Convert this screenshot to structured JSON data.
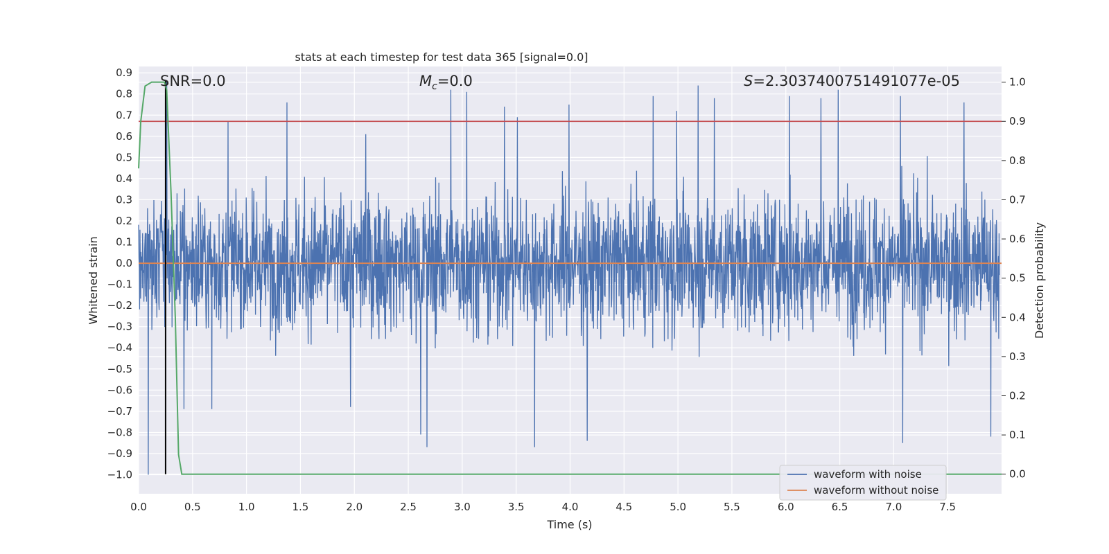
{
  "chart_data": {
    "type": "line",
    "title": "stats at each timestep for test data 365 [signal=0.0]",
    "xlabel": "Time (s)",
    "ylabel": "Whitened strain",
    "y2label": "Detection probability",
    "xlim": [
      0.0,
      8.0
    ],
    "ylim": [
      -1.09,
      0.93
    ],
    "y2lim": [
      -0.05,
      1.04
    ],
    "xticks": [
      "0.0",
      "0.5",
      "1.0",
      "1.5",
      "2.0",
      "2.5",
      "3.0",
      "3.5",
      "4.0",
      "4.5",
      "5.0",
      "5.5",
      "6.0",
      "6.5",
      "7.0",
      "7.5"
    ],
    "yticks": [
      "0.9",
      "0.8",
      "0.7",
      "0.6",
      "0.5",
      "0.4",
      "0.3",
      "0.2",
      "0.1",
      "0.0",
      "-0.1",
      "-0.2",
      "-0.3",
      "-0.4",
      "-0.5",
      "-0.6",
      "-0.7",
      "-0.8",
      "-0.9",
      "-1.0"
    ],
    "y2ticks": [
      "1.0",
      "0.9",
      "0.8",
      "0.7",
      "0.6",
      "0.5",
      "0.4",
      "0.3",
      "0.2",
      "0.1",
      "0.0"
    ],
    "grid": true,
    "legend_position": "lower-right",
    "annotations": {
      "snr": "SNR=0.0",
      "mc_symbol": "M",
      "mc_sub": "c",
      "mc_value": "=0.0",
      "s_symbol": "S",
      "s_value": "=2.3037400751491077e-05"
    },
    "series": [
      {
        "name": "waveform with noise",
        "color": "#4c72b0",
        "description_kind": "noise",
        "amplitude_envelope": [
          -0.5,
          0.5
        ],
        "spikes": [
          {
            "x": 0.09,
            "y": -1.0
          },
          {
            "x": 0.26,
            "y": 0.86
          },
          {
            "x": 0.42,
            "y": -0.69
          },
          {
            "x": 0.68,
            "y": -0.69
          },
          {
            "x": 0.83,
            "y": 0.67
          },
          {
            "x": 1.38,
            "y": 0.76
          },
          {
            "x": 1.97,
            "y": -0.68
          },
          {
            "x": 2.11,
            "y": 0.61
          },
          {
            "x": 2.62,
            "y": -0.81
          },
          {
            "x": 2.68,
            "y": -0.87
          },
          {
            "x": 2.9,
            "y": 0.82
          },
          {
            "x": 3.05,
            "y": 0.81
          },
          {
            "x": 3.4,
            "y": 0.74
          },
          {
            "x": 3.52,
            "y": 0.69
          },
          {
            "x": 3.68,
            "y": -0.87
          },
          {
            "x": 4.0,
            "y": 0.75
          },
          {
            "x": 4.17,
            "y": -0.84
          },
          {
            "x": 4.78,
            "y": 0.79
          },
          {
            "x": 5.0,
            "y": 0.72
          },
          {
            "x": 5.2,
            "y": 0.84
          },
          {
            "x": 5.35,
            "y": 0.78
          },
          {
            "x": 6.05,
            "y": 0.79
          },
          {
            "x": 6.34,
            "y": 0.78
          },
          {
            "x": 6.5,
            "y": 0.82
          },
          {
            "x": 7.08,
            "y": 0.79
          },
          {
            "x": 7.1,
            "y": -0.85
          },
          {
            "x": 7.67,
            "y": 0.76
          },
          {
            "x": 7.92,
            "y": -0.82
          }
        ]
      },
      {
        "name": "waveform without noise",
        "color": "#dd8452",
        "x": [
          0.0,
          8.0
        ],
        "y": [
          0.0,
          0.0
        ]
      },
      {
        "name": "",
        "axis": "right",
        "color": "#55a868",
        "x": [
          0.0,
          0.02,
          0.06,
          0.12,
          0.18,
          0.24,
          0.26,
          0.3,
          0.34,
          0.37,
          0.4,
          8.0
        ],
        "y": [
          0.78,
          0.9,
          0.99,
          1.0,
          1.0,
          1.0,
          0.98,
          0.72,
          0.4,
          0.05,
          0.0,
          0.0
        ]
      }
    ],
    "hlines": [
      {
        "axis": "right",
        "y": 0.9,
        "color": "#c44e52"
      }
    ],
    "vlines": [
      {
        "x": 0.25,
        "color": "#000000"
      }
    ]
  }
}
